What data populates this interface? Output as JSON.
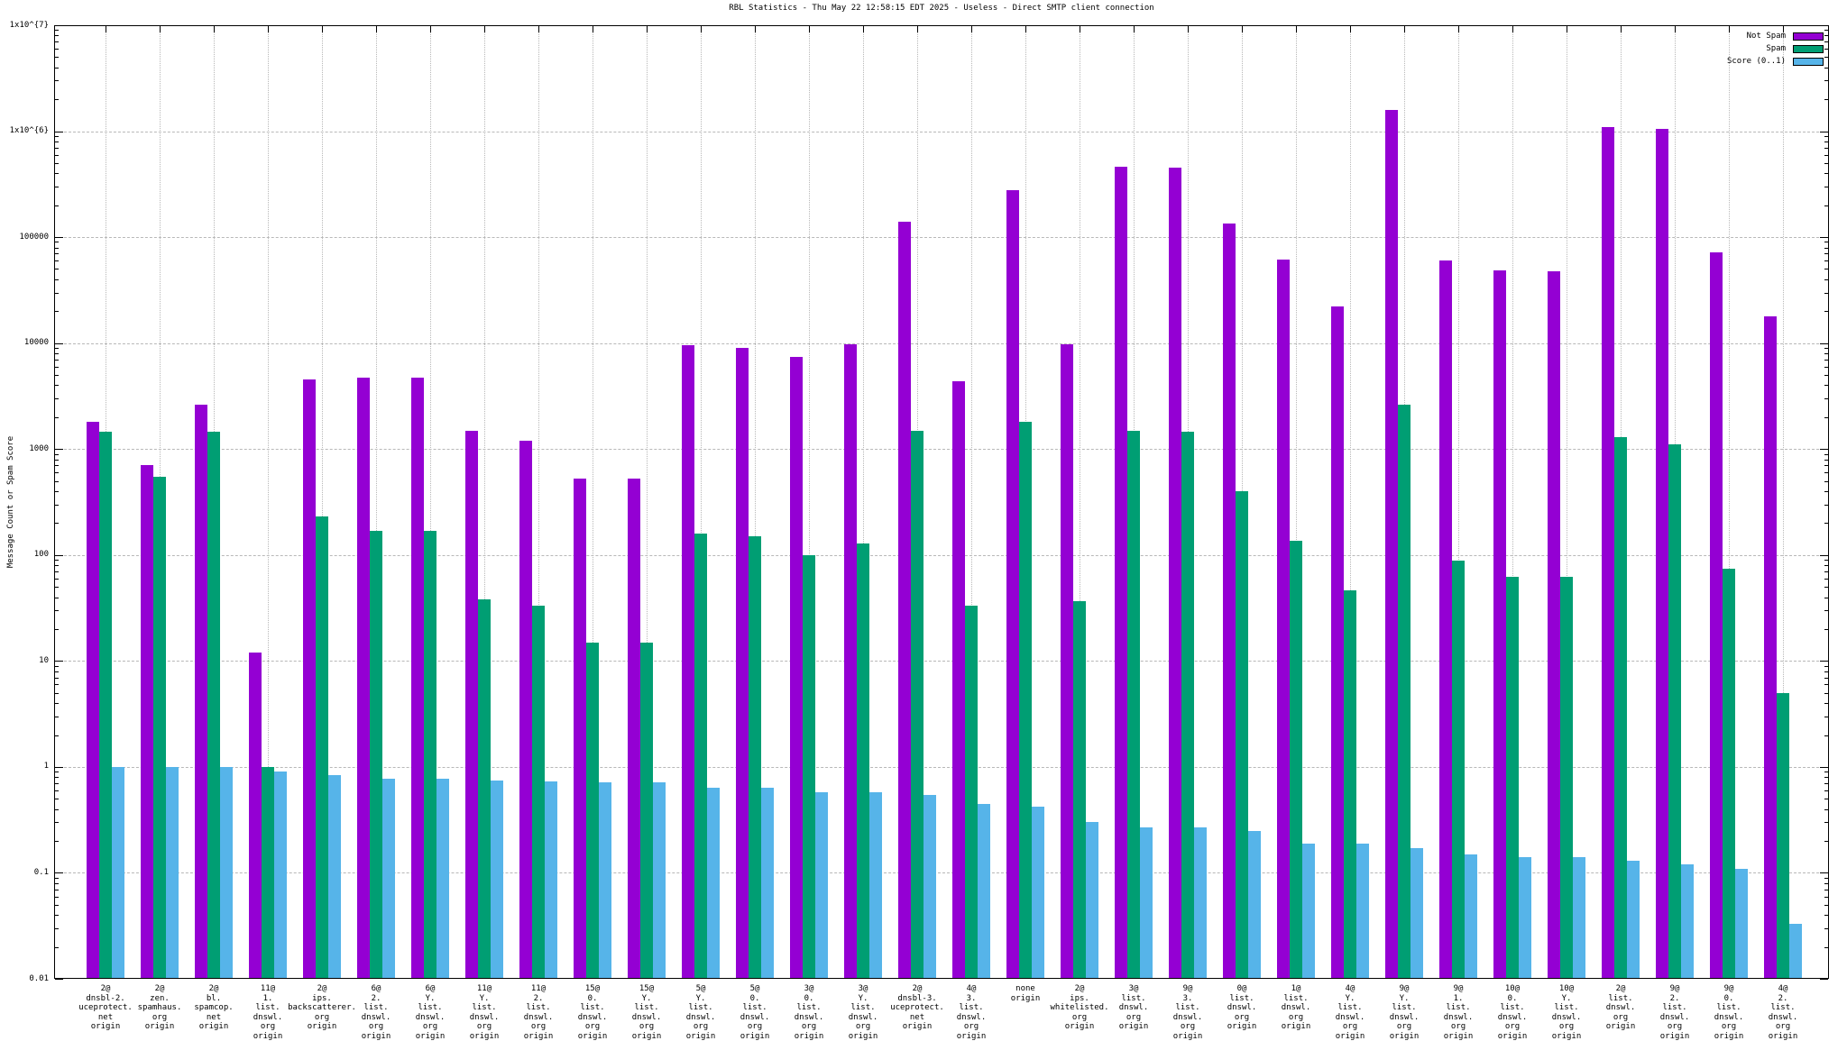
{
  "title": "RBL Statistics - Thu May 22 12:58:15 EDT 2025 - Useless - Direct SMTP client connection",
  "chart_data": {
    "type": "bar",
    "title": "RBL Statistics - Thu May 22 12:58:15 EDT 2025 - Useless - Direct SMTP client connection",
    "xlabel": "",
    "ylabel": "Message Count or Spam Score",
    "y_scale": "log",
    "ylim": [
      0.01,
      10000000
    ],
    "y_ticks": [
      "1x10^{7}",
      "1x10^{6}",
      "100000",
      "10000",
      "1000",
      "100",
      "10",
      "1",
      "0.1",
      "0.01"
    ],
    "grid": true,
    "legend_position": "top-right-inside",
    "categories": [
      [
        "2@",
        "dnsbl-2.",
        "uceprotect.",
        "net",
        "origin"
      ],
      [
        "2@",
        "zen.",
        "spamhaus.",
        "org",
        "origin"
      ],
      [
        "2@",
        "bl.",
        "spamcop.",
        "net",
        "origin"
      ],
      [
        "11@",
        "1.",
        "list.",
        "dnswl.",
        "org",
        "origin"
      ],
      [
        "2@",
        "ips.",
        "backscatterer.",
        "org",
        "origin"
      ],
      [
        "6@",
        "2.",
        "list.",
        "dnswl.",
        "org",
        "origin"
      ],
      [
        "6@",
        "Y.",
        "list.",
        "dnswl.",
        "org",
        "origin"
      ],
      [
        "11@",
        "Y.",
        "list.",
        "dnswl.",
        "org",
        "origin"
      ],
      [
        "11@",
        "2.",
        "list.",
        "dnswl.",
        "org",
        "origin"
      ],
      [
        "15@",
        "0.",
        "list.",
        "dnswl.",
        "org",
        "origin"
      ],
      [
        "15@",
        "Y.",
        "list.",
        "dnswl.",
        "org",
        "origin"
      ],
      [
        "5@",
        "Y.",
        "list.",
        "dnswl.",
        "org",
        "origin"
      ],
      [
        "5@",
        "0.",
        "list.",
        "dnswl.",
        "org",
        "origin"
      ],
      [
        "3@",
        "0.",
        "list.",
        "dnswl.",
        "org",
        "origin"
      ],
      [
        "3@",
        "Y.",
        "list.",
        "dnswl.",
        "org",
        "origin"
      ],
      [
        "2@",
        "dnsbl-3.",
        "uceprotect.",
        "net",
        "origin"
      ],
      [
        "4@",
        "3.",
        "list.",
        "dnswl.",
        "org",
        "origin"
      ],
      [
        "none",
        "origin"
      ],
      [
        "2@",
        "ips.",
        "whitelisted.",
        "org",
        "origin"
      ],
      [
        "3@",
        "list.",
        "dnswl.",
        "org",
        "origin"
      ],
      [
        "9@",
        "3.",
        "list.",
        "dnswl.",
        "org",
        "origin"
      ],
      [
        "0@",
        "list.",
        "dnswl.",
        "org",
        "origin"
      ],
      [
        "1@",
        "list.",
        "dnswl.",
        "org",
        "origin"
      ],
      [
        "4@",
        "Y.",
        "list.",
        "dnswl.",
        "org",
        "origin"
      ],
      [
        "9@",
        "Y.",
        "list.",
        "dnswl.",
        "org",
        "origin"
      ],
      [
        "9@",
        "1.",
        "list.",
        "dnswl.",
        "org",
        "origin"
      ],
      [
        "10@",
        "0.",
        "list.",
        "dnswl.",
        "org",
        "origin"
      ],
      [
        "10@",
        "Y.",
        "list.",
        "dnswl.",
        "org",
        "origin"
      ],
      [
        "2@",
        "list.",
        "dnswl.",
        "org",
        "origin"
      ],
      [
        "9@",
        "2.",
        "list.",
        "dnswl.",
        "org",
        "origin"
      ],
      [
        "9@",
        "0.",
        "list.",
        "dnswl.",
        "org",
        "origin"
      ],
      [
        "4@",
        "2.",
        "list.",
        "dnswl.",
        "org",
        "origin"
      ]
    ],
    "series": [
      {
        "name": "Not Spam",
        "color": "#9400d3",
        "values": [
          1800,
          700,
          2600,
          12,
          4500,
          4700,
          4700,
          1500,
          1200,
          530,
          530,
          9500,
          9000,
          7400,
          9800,
          140000,
          4400,
          280000,
          9700,
          460000,
          450000,
          135000,
          62000,
          22000,
          1600000,
          60000,
          49000,
          48000,
          1100000,
          1050000,
          72000,
          18000
        ]
      },
      {
        "name": "Spam",
        "color": "#009e73",
        "values": [
          1450,
          550,
          1450,
          1,
          230,
          170,
          170,
          38,
          33,
          15,
          15,
          160,
          150,
          100,
          128,
          1500,
          33,
          1800,
          37,
          1500,
          1450,
          400,
          135,
          46,
          2600,
          88,
          62,
          62,
          1300,
          1100,
          74,
          5
        ]
      },
      {
        "name": "Score (0..1)",
        "color": "#56b4e9",
        "values": [
          1.0,
          1.0,
          1.0,
          0.9,
          0.83,
          0.78,
          0.78,
          0.75,
          0.73,
          0.72,
          0.72,
          0.63,
          0.63,
          0.58,
          0.58,
          0.54,
          0.45,
          0.42,
          0.3,
          0.27,
          0.27,
          0.25,
          0.19,
          0.19,
          0.17,
          0.15,
          0.14,
          0.14,
          0.13,
          0.12,
          0.11,
          0.033
        ]
      }
    ]
  }
}
